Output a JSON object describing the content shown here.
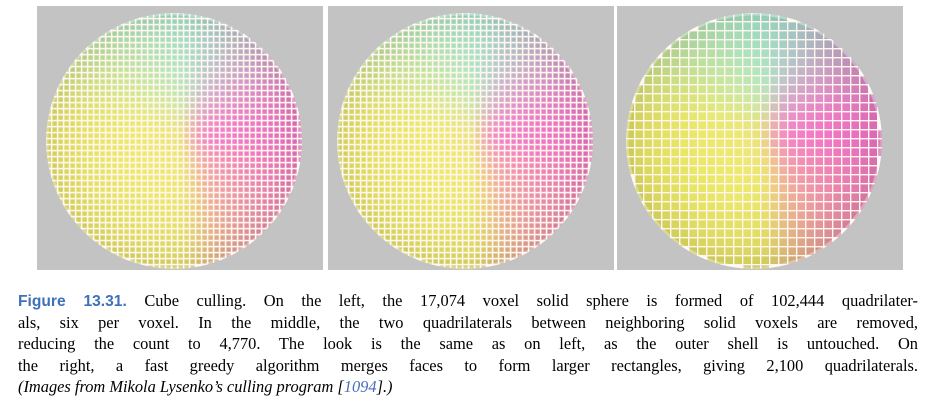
{
  "figure": {
    "label": "Figure 13.31.",
    "caption_lines": [
      " Cube culling. On the left, the 17,074 voxel solid sphere is formed of 102,444 quadrilater-",
      "als, six per voxel. In the middle, the two quadrilaterals between neighboring solid voxels are removed,",
      "reducing the count to 4,770. The look is the same as on left, as the outer shell is untouched. On",
      "the right, a fast greedy algorithm merges faces to form larger rectangles, giving 2,100 quadrilaterals."
    ],
    "credit_prefix": "(Images from Mikola Lysenko’s culling program [",
    "credit_ref": "1094",
    "credit_suffix": "].)"
  },
  "panels": [
    {
      "id": "left",
      "merged": false
    },
    {
      "id": "middle",
      "merged": false
    },
    {
      "id": "right",
      "merged": true
    }
  ],
  "colors": {
    "background": "#c3c3c3",
    "cyan": "#9fe3cf",
    "yellow": "#e4e35f",
    "magenta": "#ee6fc3",
    "highlight": "#fff6f0",
    "figure_label": "#3e72b8",
    "citation": "#4a6fb8"
  }
}
